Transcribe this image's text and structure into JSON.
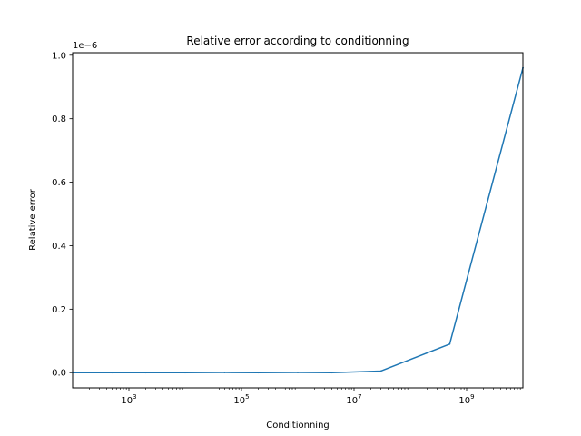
{
  "chart_data": {
    "type": "line",
    "title": "Relative error according to conditionning",
    "xlabel": "Conditionning",
    "ylabel": "Relative error",
    "xscale": "log",
    "yscale": "linear",
    "y_offset_text": "1e−6",
    "y_multiplier": 1e-06,
    "xlim": [
      100,
      10000000000
    ],
    "ylim": [
      -0.048,
      1.008
    ],
    "x_ticks": [
      {
        "value": 1000,
        "base": "10",
        "exp": "3"
      },
      {
        "value": 100000,
        "base": "10",
        "exp": "5"
      },
      {
        "value": 10000000,
        "base": "10",
        "exp": "7"
      },
      {
        "value": 1000000000,
        "base": "10",
        "exp": "9"
      }
    ],
    "y_ticks": [
      {
        "value": 0.0,
        "label": "0.0"
      },
      {
        "value": 0.2,
        "label": "0.2"
      },
      {
        "value": 0.4,
        "label": "0.4"
      },
      {
        "value": 0.6,
        "label": "0.6"
      },
      {
        "value": 0.8,
        "label": "0.8"
      },
      {
        "value": 1.0,
        "label": "1.0"
      }
    ],
    "grid": false,
    "series": [
      {
        "color": "#1f77b4",
        "x": [
          100,
          500,
          2000,
          10000,
          50000,
          200000,
          1000000,
          4000000,
          30000000,
          500000000,
          10000000000
        ],
        "y": [
          0.0,
          0.0,
          0.0,
          0.0,
          0.0005,
          0.0,
          0.0005,
          0.0,
          0.005,
          0.09,
          0.96
        ]
      }
    ]
  }
}
